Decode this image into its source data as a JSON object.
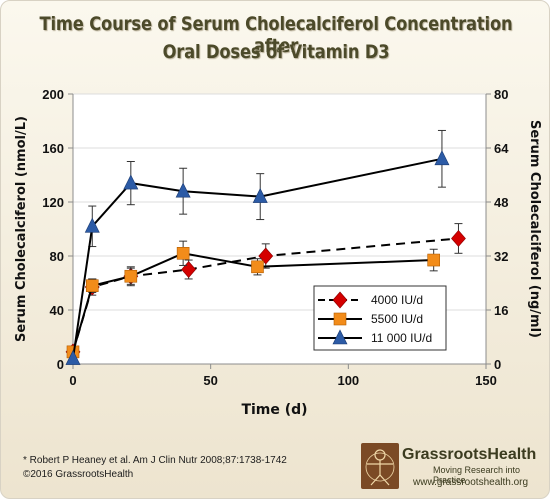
{
  "chart_data": {
    "type": "line",
    "title_line1": "Time Course of Serum Cholecalciferol Concentration after",
    "title_line2": "Oral Doses of Vitamin D3",
    "xlabel": "Time (d)",
    "ylabel_left": "Serum Cholecalciferol (nmol/L)",
    "ylabel_right": "Serum Cholecalciferol (ng/ml)",
    "xlim": [
      0,
      150
    ],
    "ylim_left": [
      0,
      200
    ],
    "ylim_right": [
      0,
      80
    ],
    "x_ticks": [
      0,
      50,
      100,
      150
    ],
    "y_ticks_left": [
      0,
      40,
      80,
      120,
      160,
      200
    ],
    "y_ticks_right": [
      0,
      16,
      32,
      48,
      64,
      80
    ],
    "grid": "horizontal",
    "legend_position": "bottom-right",
    "series": [
      {
        "name": "4000 IU/d",
        "color": "#d40000",
        "marker": "diamond",
        "line": "dashed",
        "x": [
          0,
          7,
          21,
          42,
          70,
          140
        ],
        "y": [
          9,
          57,
          65,
          70,
          80,
          93
        ],
        "err": [
          0,
          6,
          7,
          7,
          9,
          11
        ]
      },
      {
        "name": "5500 IU/d",
        "color": "#f28c1a",
        "marker": "square",
        "line": "solid",
        "x": [
          0,
          7,
          21,
          40,
          67,
          131
        ],
        "y": [
          9,
          58,
          65,
          82,
          72,
          77
        ],
        "err": [
          0,
          5,
          6,
          9,
          6,
          8
        ]
      },
      {
        "name": "11 000 IU/d",
        "color": "#2c5ba6",
        "marker": "triangle",
        "line": "solid",
        "x": [
          0,
          7,
          21,
          40,
          68,
          134
        ],
        "y": [
          4,
          102,
          134,
          128,
          124,
          152
        ],
        "err": [
          0,
          15,
          16,
          17,
          17,
          21
        ]
      }
    ],
    "line_color": "#000000",
    "axis_color": "#8c8c8c",
    "grid_color": "#dcdcdc"
  },
  "footer": {
    "citation": "* Robert P Heaney et al. Am J Clin Nutr 2008;87:1738-1742",
    "copyright": "©2016 GrassrootsHealth",
    "brand": "GrassrootsHealth",
    "tagline": "Moving Research into Practice",
    "website": "www.grassrootshealth.org"
  }
}
